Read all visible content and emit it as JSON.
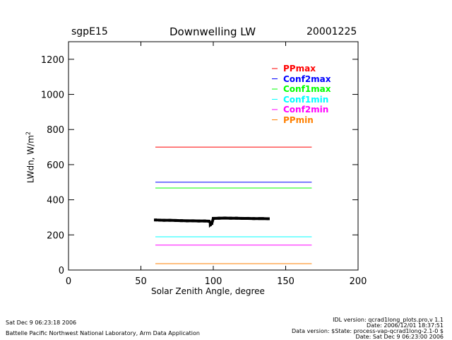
{
  "header": {
    "site": "sgpE15",
    "title": "Downwelling LW",
    "date": "20001225"
  },
  "footer": {
    "left": [
      "Sat Dec  9 06:23:18 2006",
      "Battelle Pacific Northwest National Laboratory, Arm Data Application"
    ],
    "right": [
      "IDL version: qcrad1long_plots.pro,v 1.1",
      "Date: 2006/12/01 18:37:51",
      "Data version: $State: process-vap-qcrad1long-2.1-0 $",
      "Date: Sat Dec  9 06:23:00 2006"
    ]
  },
  "chart_data": {
    "type": "line",
    "title": "Downwelling LW",
    "xlabel": "Solar Zenith Angle, degree",
    "ylabel": "LWdn, W/m",
    "ylabel_sup": "2",
    "xlim": [
      0,
      200
    ],
    "ylim": [
      0,
      1300
    ],
    "xticks": [
      0,
      50,
      100,
      150,
      200
    ],
    "yticks": [
      0,
      200,
      400,
      600,
      800,
      1000,
      1200
    ],
    "legend_position": "top-right",
    "limits": [
      {
        "name": "PPmax",
        "color": "#ff0000",
        "x": [
          60,
          168
        ],
        "y": 700
      },
      {
        "name": "Conf2max",
        "color": "#0000ff",
        "x": [
          60,
          168
        ],
        "y": 500
      },
      {
        "name": "Conf1max",
        "color": "#00ff00",
        "x": [
          60,
          168
        ],
        "y": 467
      },
      {
        "name": "Conf1min",
        "color": "#00ffff",
        "x": [
          60,
          168
        ],
        "y": 189
      },
      {
        "name": "Conf2min",
        "color": "#ff00ff",
        "x": [
          60,
          168
        ],
        "y": 142
      },
      {
        "name": "PPmin",
        "color": "#ff8000",
        "x": [
          60,
          168
        ],
        "y": 36
      }
    ],
    "data_series": {
      "name": "LWdn",
      "color": "#000000",
      "points": [
        [
          60,
          285
        ],
        [
          63,
          284
        ],
        [
          66,
          283
        ],
        [
          70,
          283
        ],
        [
          74,
          282
        ],
        [
          78,
          281
        ],
        [
          82,
          280
        ],
        [
          86,
          280
        ],
        [
          90,
          279
        ],
        [
          94,
          279
        ],
        [
          97,
          278
        ],
        [
          98,
          270
        ],
        [
          98,
          258
        ],
        [
          99,
          265
        ],
        [
          100,
          294
        ],
        [
          104,
          295
        ],
        [
          108,
          296
        ],
        [
          112,
          295
        ],
        [
          116,
          295
        ],
        [
          120,
          294
        ],
        [
          124,
          294
        ],
        [
          128,
          293
        ],
        [
          132,
          293
        ],
        [
          134,
          293
        ],
        [
          138,
          292
        ]
      ]
    }
  }
}
